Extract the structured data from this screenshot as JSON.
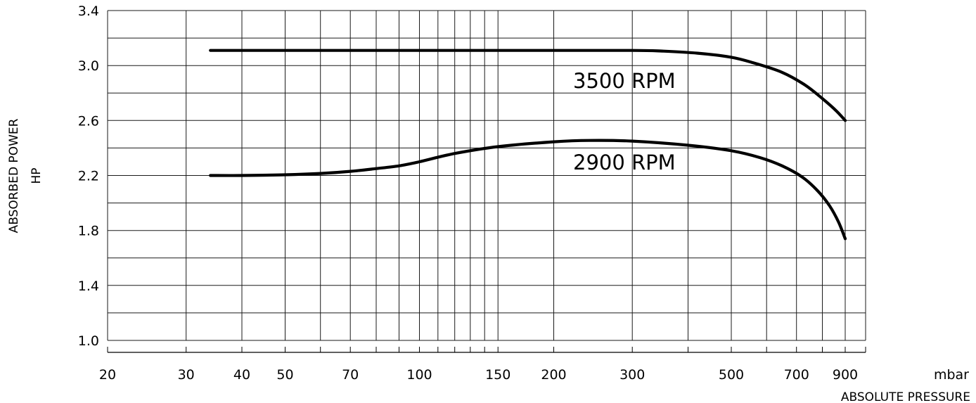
{
  "chart_data": {
    "type": "line",
    "title": "",
    "xlabel": "ABSOLUTE PRESSURE",
    "xunit": "mbar",
    "ylabel_lines": [
      "ABSORBED POWER",
      "HP"
    ],
    "x_scale": "log",
    "xlim": [
      20,
      1000
    ],
    "ylim": [
      1.0,
      3.4
    ],
    "grid": true,
    "y_ticks": [
      "1.0",
      "1.4",
      "1.8",
      "2.2",
      "2.6",
      "3.0",
      "3.4"
    ],
    "x_ticks": [
      "20",
      "30",
      "40",
      "50",
      "70",
      "100",
      "150",
      "200",
      "300",
      "500",
      "700",
      "900"
    ],
    "series": [
      {
        "name": "3500 RPM",
        "points": [
          [
            34,
            3.11
          ],
          [
            100,
            3.11
          ],
          [
            200,
            3.11
          ],
          [
            300,
            3.11
          ],
          [
            350,
            3.105
          ],
          [
            420,
            3.09
          ],
          [
            500,
            3.06
          ],
          [
            560,
            3.02
          ],
          [
            650,
            2.95
          ],
          [
            730,
            2.86
          ],
          [
            800,
            2.76
          ],
          [
            860,
            2.67
          ],
          [
            900,
            2.6
          ]
        ]
      },
      {
        "name": "2900 RPM",
        "points": [
          [
            34,
            2.2
          ],
          [
            40,
            2.2
          ],
          [
            50,
            2.205
          ],
          [
            60,
            2.215
          ],
          [
            70,
            2.23
          ],
          [
            80,
            2.25
          ],
          [
            90,
            2.27
          ],
          [
            100,
            2.3
          ],
          [
            120,
            2.36
          ],
          [
            150,
            2.41
          ],
          [
            200,
            2.445
          ],
          [
            240,
            2.455
          ],
          [
            300,
            2.45
          ],
          [
            400,
            2.42
          ],
          [
            500,
            2.38
          ],
          [
            580,
            2.33
          ],
          [
            650,
            2.27
          ],
          [
            720,
            2.19
          ],
          [
            780,
            2.09
          ],
          [
            830,
            1.98
          ],
          [
            870,
            1.86
          ],
          [
            900,
            1.74
          ]
        ]
      }
    ]
  }
}
